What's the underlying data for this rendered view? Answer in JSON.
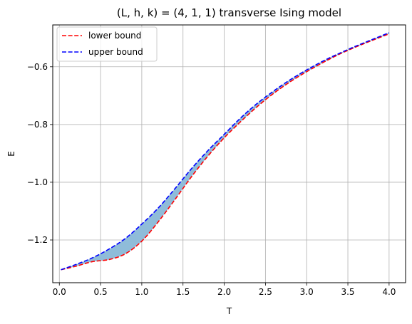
{
  "chart_data": {
    "type": "line",
    "title": "(L, h, k) = (4, 1, 1) transverse Ising model",
    "xlabel": "T",
    "ylabel": "E",
    "xlim": [
      -0.08,
      4.2
    ],
    "ylim": [
      -1.348,
      -0.455
    ],
    "x_ticks": [
      0.0,
      0.5,
      1.0,
      1.5,
      2.0,
      2.5,
      3.0,
      3.5,
      4.0
    ],
    "x_tick_labels": [
      "0.0",
      "0.5",
      "1.0",
      "1.5",
      "2.0",
      "2.5",
      "3.0",
      "3.5",
      "4.0"
    ],
    "y_ticks": [
      -1.2,
      -1.0,
      -0.8,
      -0.6
    ],
    "y_tick_labels": [
      "−1.2",
      "−1.0",
      "−0.8",
      "−0.6"
    ],
    "grid": true,
    "legend_position": "top-left",
    "fill_between": {
      "color": "#8fbcd9",
      "between": [
        "lower bound",
        "upper bound"
      ]
    },
    "x": [
      0.02,
      0.2,
      0.4,
      0.6,
      0.8,
      1.0,
      1.2,
      1.4,
      1.6,
      1.8,
      2.0,
      2.2,
      2.4,
      2.6,
      2.8,
      3.0,
      3.2,
      3.4,
      3.6,
      3.8,
      4.0
    ],
    "series": [
      {
        "name": "lower bound",
        "color": "#ff0000",
        "style": "dashed",
        "values": [
          -1.303,
          -1.291,
          -1.275,
          -1.268,
          -1.248,
          -1.204,
          -1.137,
          -1.061,
          -0.982,
          -0.91,
          -0.846,
          -0.79,
          -0.738,
          -0.692,
          -0.652,
          -0.617,
          -0.585,
          -0.556,
          -0.531,
          -0.508,
          -0.486
        ]
      },
      {
        "name": "upper bound",
        "color": "#0000ff",
        "style": "dashed",
        "values": [
          -1.303,
          -1.285,
          -1.262,
          -1.232,
          -1.195,
          -1.145,
          -1.089,
          -1.023,
          -0.954,
          -0.891,
          -0.834,
          -0.777,
          -0.727,
          -0.684,
          -0.645,
          -0.611,
          -0.58,
          -0.553,
          -0.528,
          -0.505,
          -0.482
        ]
      }
    ]
  }
}
